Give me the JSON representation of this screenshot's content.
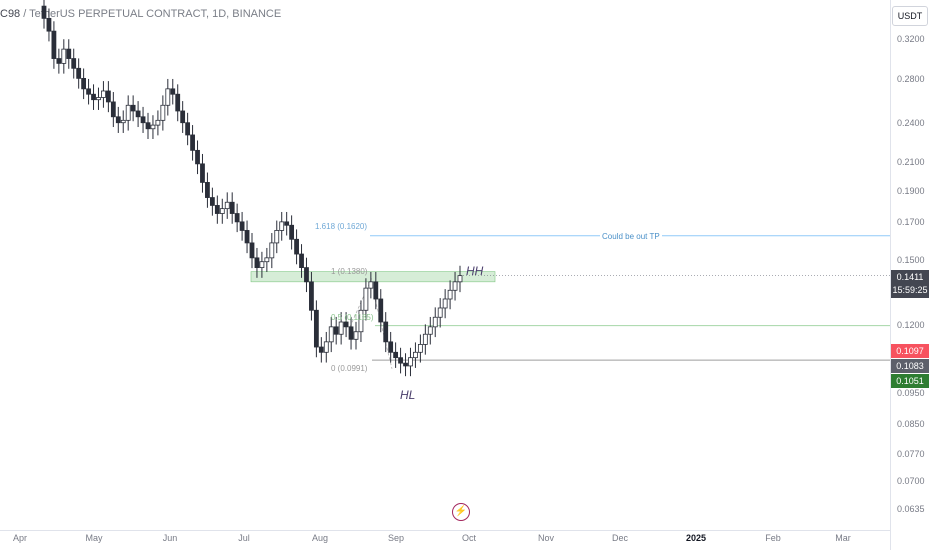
{
  "header": {
    "symbol": "C98",
    "title_rest": " / TetherUS PERPETUAL CONTRACT, 1D, BINANCE"
  },
  "currency_label": "USDT",
  "price_axis": {
    "ticks": [
      "0.3200",
      "0.2800",
      "0.2400",
      "0.2100",
      "0.1900",
      "0.1700",
      "0.1500",
      "0.1200",
      "0.0950",
      "0.0850",
      "0.0770",
      "0.0700",
      "0.0635"
    ],
    "current_price": "0.1411",
    "countdown": "15:59:25",
    "badges": [
      {
        "label": "0.1097",
        "color": "#f7525f"
      },
      {
        "label": "0.1083",
        "color": "#5d606b"
      },
      {
        "label": "0.1051",
        "color": "#2e7d32"
      }
    ]
  },
  "time_axis": {
    "ticks": [
      "Apr",
      "May",
      "Jun",
      "Jul",
      "Aug",
      "Sep",
      "Oct",
      "Nov",
      "Dec",
      "2025",
      "Feb",
      "Mar"
    ]
  },
  "fib": {
    "level_1618": "1.618 (0.1620)",
    "level_1": "1 (0.1380)",
    "level_05": "0.5 (0.1185)",
    "level_0": "0 (0.0991)"
  },
  "annotations": {
    "tp_label": "Could be out TP",
    "hh": "HH",
    "hl": "HL"
  },
  "colors": {
    "up": "#26a69a",
    "down": "#ef5350",
    "candle": "#2a2e39",
    "zone": "#a5d6a7",
    "tp_line": "#90caf9"
  },
  "chart_data": {
    "type": "candlestick",
    "title": "C98 / TetherUS PERPETUAL CONTRACT, 1D, BINANCE",
    "y_scale": "log",
    "ylim": [
      0.06,
      0.36
    ],
    "x_range": [
      "Apr",
      "Mar"
    ],
    "series": [
      {
        "name": "C98USDT",
        "closes": [
          0.345,
          0.33,
          0.3,
          0.295,
          0.31,
          0.3,
          0.29,
          0.28,
          0.27,
          0.265,
          0.26,
          0.262,
          0.268,
          0.258,
          0.245,
          0.24,
          0.242,
          0.255,
          0.25,
          0.245,
          0.24,
          0.235,
          0.238,
          0.242,
          0.255,
          0.27,
          0.265,
          0.25,
          0.24,
          0.23,
          0.218,
          0.208,
          0.195,
          0.185,
          0.18,
          0.175,
          0.178,
          0.182,
          0.175,
          0.17,
          0.165,
          0.158,
          0.15,
          0.145,
          0.148,
          0.15,
          0.158,
          0.165,
          0.17,
          0.168,
          0.16,
          0.152,
          0.145,
          0.138,
          0.125,
          0.11,
          0.108,
          0.112,
          0.118,
          0.115,
          0.12,
          0.118,
          0.113,
          0.116,
          0.125,
          0.135,
          0.138,
          0.13,
          0.12,
          0.112,
          0.108,
          0.106,
          0.104,
          0.103,
          0.106,
          0.108,
          0.111,
          0.115,
          0.118,
          0.122,
          0.126,
          0.13,
          0.134,
          0.138,
          0.141
        ]
      }
    ],
    "levels": {
      "fib_1618": 0.162,
      "fib_1": 0.138,
      "fib_05": 0.1185,
      "fib_0": 0.0991,
      "zone": [
        0.138,
        0.143
      ],
      "hl": 0.1051
    }
  }
}
